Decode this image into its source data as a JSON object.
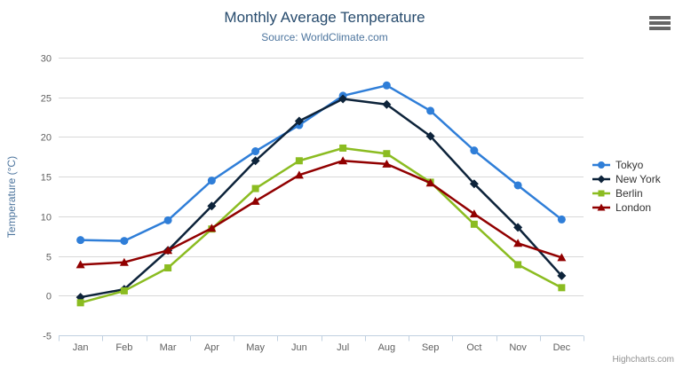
{
  "ui": {
    "credits": "Highcharts.com",
    "context_menu_icon": "hamburger-menu-icon"
  },
  "chart_data": {
    "type": "line",
    "title": "Monthly Average Temperature",
    "subtitle": "Source: WorldClimate.com",
    "xlabel": "",
    "ylabel": "Temperature (°C)",
    "categories": [
      "Jan",
      "Feb",
      "Mar",
      "Apr",
      "May",
      "Jun",
      "Jul",
      "Aug",
      "Sep",
      "Oct",
      "Nov",
      "Dec"
    ],
    "ylim": [
      -5,
      30
    ],
    "yticks": [
      -5,
      0,
      5,
      10,
      15,
      20,
      25,
      30
    ],
    "grid": "horizontal",
    "legend_position": "right",
    "series": [
      {
        "name": "Tokyo",
        "color": "#2f7ed8",
        "marker": "circle",
        "values": [
          7.0,
          6.9,
          9.5,
          14.5,
          18.2,
          21.5,
          25.2,
          26.5,
          23.3,
          18.3,
          13.9,
          9.6
        ]
      },
      {
        "name": "New York",
        "color": "#0d233a",
        "marker": "diamond",
        "values": [
          -0.2,
          0.8,
          5.7,
          11.3,
          17.0,
          22.0,
          24.8,
          24.1,
          20.1,
          14.1,
          8.6,
          2.5
        ]
      },
      {
        "name": "Berlin",
        "color": "#8bbc21",
        "marker": "square",
        "values": [
          -0.9,
          0.6,
          3.5,
          8.4,
          13.5,
          17.0,
          18.6,
          17.9,
          14.3,
          9.0,
          3.9,
          1.0
        ]
      },
      {
        "name": "London",
        "color": "#910000",
        "marker": "triangle",
        "values": [
          3.9,
          4.2,
          5.7,
          8.5,
          11.9,
          15.2,
          17.0,
          16.6,
          14.2,
          10.3,
          6.6,
          4.8
        ]
      }
    ],
    "colors": {
      "title": "#274b6d",
      "subtitle": "#4d759e",
      "axis_title": "#4d759e",
      "axis_labels": "#606060",
      "gridline": "#d8d8d8",
      "axis_line": "#c0d0e0",
      "legend_text": "#333333",
      "credits_text": "#909090"
    }
  }
}
